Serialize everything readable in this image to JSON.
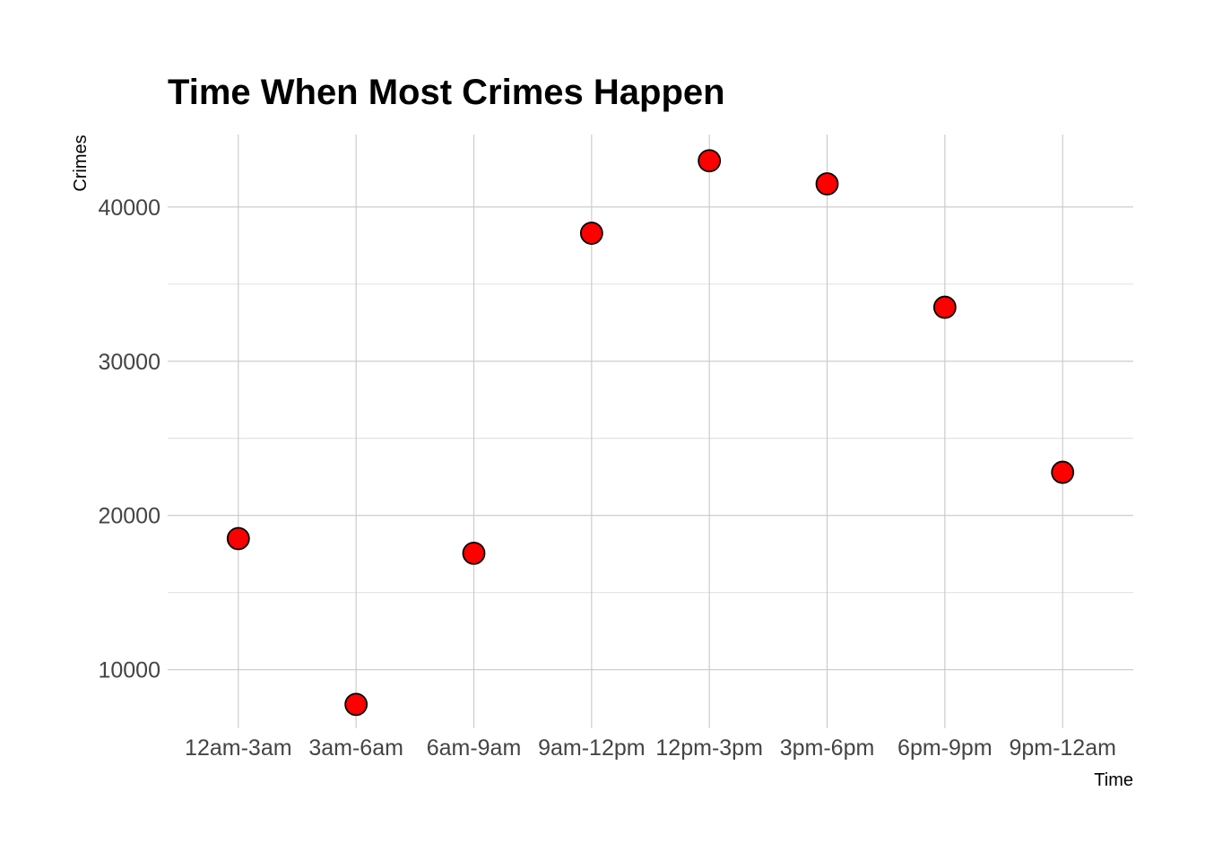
{
  "chart_data": {
    "type": "scatter",
    "title": "Time When Most Crimes Happen",
    "xlabel": "Time",
    "ylabel": "Crimes",
    "categories": [
      "12am-3am",
      "3am-6am",
      "6am-9am",
      "9am-12pm",
      "12pm-3pm",
      "3pm-6pm",
      "6pm-9pm",
      "9pm-12am"
    ],
    "values": [
      18500,
      7750,
      17550,
      38300,
      43000,
      41500,
      33500,
      22800
    ],
    "ylim": [
      6200,
      44700
    ],
    "yticks": [
      10000,
      20000,
      30000,
      40000
    ],
    "grid": true,
    "colors": {
      "point_fill": "#ff0000",
      "point_stroke": "#000000"
    }
  }
}
